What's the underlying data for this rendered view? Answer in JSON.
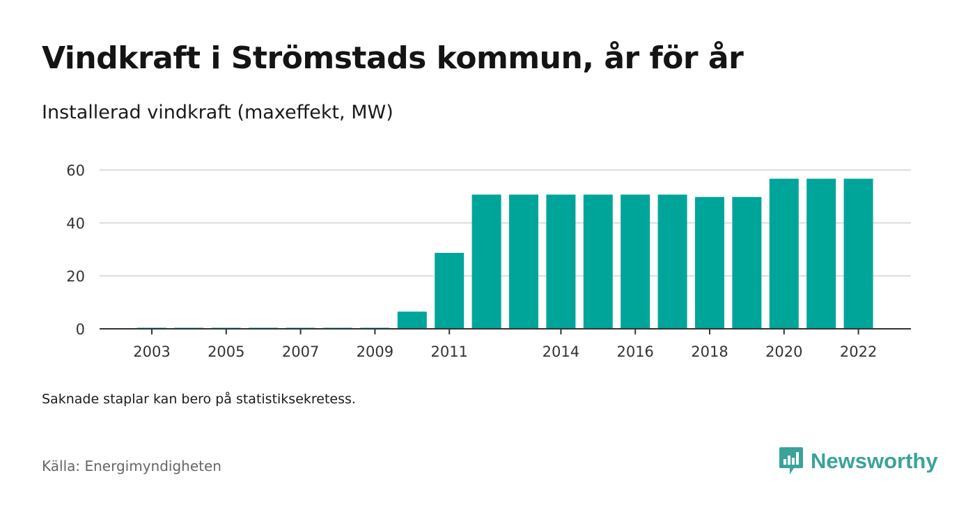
{
  "title": "Vindkraft i Strömstads kommun, år för år",
  "subtitle": "Installerad vindkraft (maxeffekt, MW)",
  "note": "Saknade staplar kan bero på statistiksekretess.",
  "source": "Källa: Energimyndigheten",
  "brand": {
    "name": "Newsworthy",
    "icon": "newsworthy-logo-icon",
    "color": "#3aa39a"
  },
  "chart_data": {
    "type": "bar",
    "categories": [
      2003,
      2004,
      2005,
      2006,
      2007,
      2008,
      2009,
      2010,
      2011,
      2012,
      2013,
      2014,
      2015,
      2016,
      2017,
      2018,
      2019,
      2020,
      2021,
      2022
    ],
    "values": [
      0.4,
      0.4,
      0.4,
      0.4,
      0.4,
      0.4,
      0.4,
      6.5,
      28.7,
      50.7,
      50.7,
      50.7,
      50.7,
      50.7,
      50.7,
      49.8,
      49.8,
      56.7,
      56.7,
      56.7
    ],
    "x_tick_labels": [
      "2003",
      "2005",
      "2007",
      "2009",
      "2011",
      "2014",
      "2016",
      "2018",
      "2020",
      "2022"
    ],
    "y_ticks": [
      0,
      20,
      40,
      60
    ],
    "ylim": [
      0,
      60
    ],
    "xlabel": "",
    "ylabel": "",
    "grid": true,
    "bar_color": "#00a59a",
    "grid_color": "#dddddd",
    "axis_color": "#333333"
  }
}
